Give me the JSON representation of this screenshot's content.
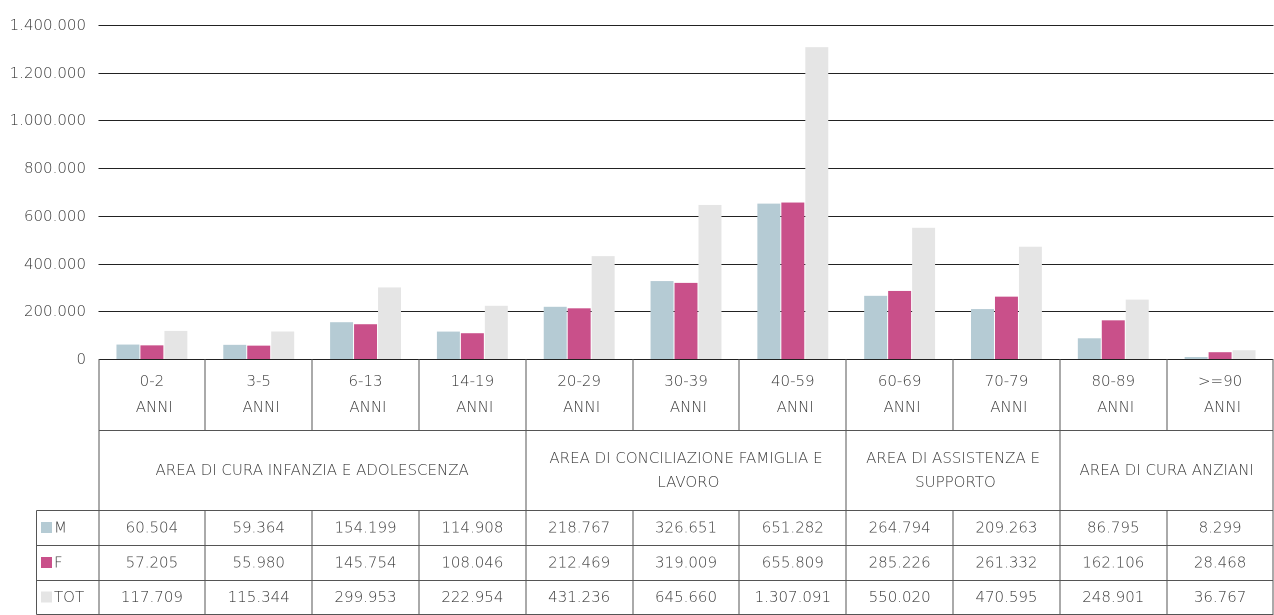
{
  "chart_data": {
    "type": "bar",
    "categories": [
      "0-2 ANNI",
      "3-5 ANNI",
      "6-13 ANNI",
      "14-19 ANNI",
      "20-29 ANNI",
      "30-39 ANNI",
      "40-59 ANNI",
      "60-69 ANNI",
      "70-79 ANNI",
      "80-89 ANNI",
      ">=90 ANNI"
    ],
    "groups": [
      "AREA DI CURA INFANZIA E ADOLESCENZA",
      "AREA DI CONCILIAZIONE FAMIGLIA E LAVORO",
      "AREA DI ASSISTENZA E SUPPORTO",
      "AREA DI CURA ANZIANI"
    ],
    "series": [
      {
        "name": "M",
        "color": "#b5cbd4",
        "values": [
          60504,
          59364,
          154199,
          114908,
          218767,
          326651,
          651282,
          264794,
          209263,
          86795,
          8299
        ],
        "value_labels": [
          "60.504",
          "59.364",
          "154.199",
          "114.908",
          "218.767",
          "326.651",
          "651.282",
          "264.794",
          "209.263",
          "86.795",
          "8.299"
        ]
      },
      {
        "name": "F",
        "color": "#c9508a",
        "values": [
          57205,
          55980,
          145754,
          108046,
          212469,
          319009,
          655809,
          285226,
          261332,
          162106,
          28468
        ],
        "value_labels": [
          "57.205",
          "55.980",
          "145.754",
          "108.046",
          "212.469",
          "319.009",
          "655.809",
          "285.226",
          "261.332",
          "162.106",
          "28.468"
        ]
      },
      {
        "name": "TOT",
        "color": "#e5e5e5",
        "values": [
          117709,
          115344,
          299953,
          222954,
          431236,
          645660,
          1307091,
          550020,
          470595,
          248901,
          36767
        ],
        "value_labels": [
          "117.709",
          "115.344",
          "299.953",
          "222.954",
          "431.236",
          "645.660",
          "1.307.091",
          "550.020",
          "470.595",
          "248.901",
          "36.767"
        ]
      }
    ],
    "ylim": [
      0,
      1400000
    ],
    "yticks": [
      0,
      {
        "value": 200000,
        "label": "200.000"
      },
      {
        "value": 400000,
        "label": "400.000"
      },
      {
        "value": 600000,
        "label": "600.000"
      },
      {
        "value": 800000,
        "label": "800.000"
      },
      {
        "value": 1000000,
        "label": "1.000.000"
      },
      {
        "value": 1200000,
        "label": "1.200.000"
      },
      {
        "value": 1400000,
        "label": "1.400.000"
      }
    ],
    "grid": true
  }
}
